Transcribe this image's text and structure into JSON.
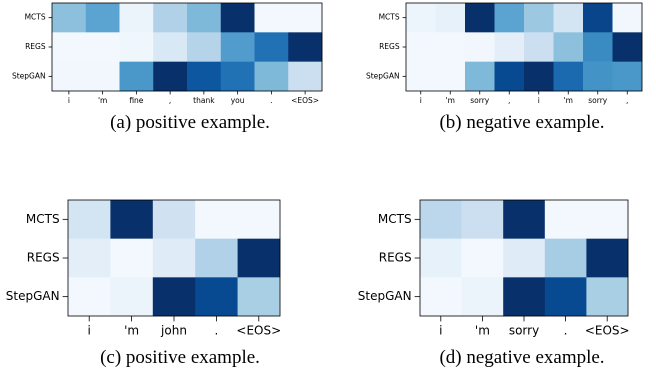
{
  "chart_data": [
    {
      "type": "heatmap",
      "caption": "(a) positive example.",
      "rows": [
        "MCTS",
        "REGS",
        "StepGAN"
      ],
      "columns": [
        "i",
        "'m",
        "fine",
        ",",
        "thank",
        "you",
        ".",
        "<EOS>"
      ],
      "values": [
        [
          0.42,
          0.55,
          0.06,
          0.32,
          0.45,
          1.0,
          0.02,
          0.02
        ],
        [
          0.02,
          0.02,
          0.04,
          0.15,
          0.3,
          0.58,
          0.75,
          1.0
        ],
        [
          0.03,
          0.03,
          0.6,
          1.0,
          0.85,
          0.75,
          0.45,
          0.22
        ]
      ]
    },
    {
      "type": "heatmap",
      "caption": "(b) negative example.",
      "rows": [
        "MCTS",
        "REGS",
        "StepGAN"
      ],
      "columns": [
        "i",
        "'m",
        "sorry",
        ",",
        "i",
        "'m",
        "sorry",
        ","
      ],
      "values": [
        [
          0.05,
          0.08,
          1.0,
          0.55,
          0.38,
          0.18,
          0.92,
          0.03
        ],
        [
          0.02,
          0.02,
          0.03,
          0.1,
          0.22,
          0.42,
          0.65,
          1.0
        ],
        [
          0.02,
          0.02,
          0.45,
          0.9,
          1.0,
          0.78,
          0.62,
          0.6
        ]
      ]
    },
    {
      "type": "heatmap",
      "caption": "(c) positive example.",
      "rows": [
        "MCTS",
        "REGS",
        "StepGAN"
      ],
      "columns": [
        "i",
        "'m",
        "john",
        ".",
        "<EOS>"
      ],
      "values": [
        [
          0.18,
          1.0,
          0.2,
          0.02,
          0.02
        ],
        [
          0.1,
          0.02,
          0.12,
          0.32,
          1.0
        ],
        [
          0.02,
          0.06,
          1.0,
          0.9,
          0.34
        ]
      ]
    },
    {
      "type": "heatmap",
      "caption": "(d) negative example.",
      "rows": [
        "MCTS",
        "REGS",
        "StepGAN"
      ],
      "columns": [
        "i",
        "'m",
        "sorry",
        ".",
        "<EOS>"
      ],
      "values": [
        [
          0.28,
          0.22,
          1.0,
          0.02,
          0.02
        ],
        [
          0.08,
          0.02,
          0.12,
          0.35,
          1.0
        ],
        [
          0.02,
          0.06,
          1.0,
          0.9,
          0.34
        ]
      ]
    }
  ]
}
